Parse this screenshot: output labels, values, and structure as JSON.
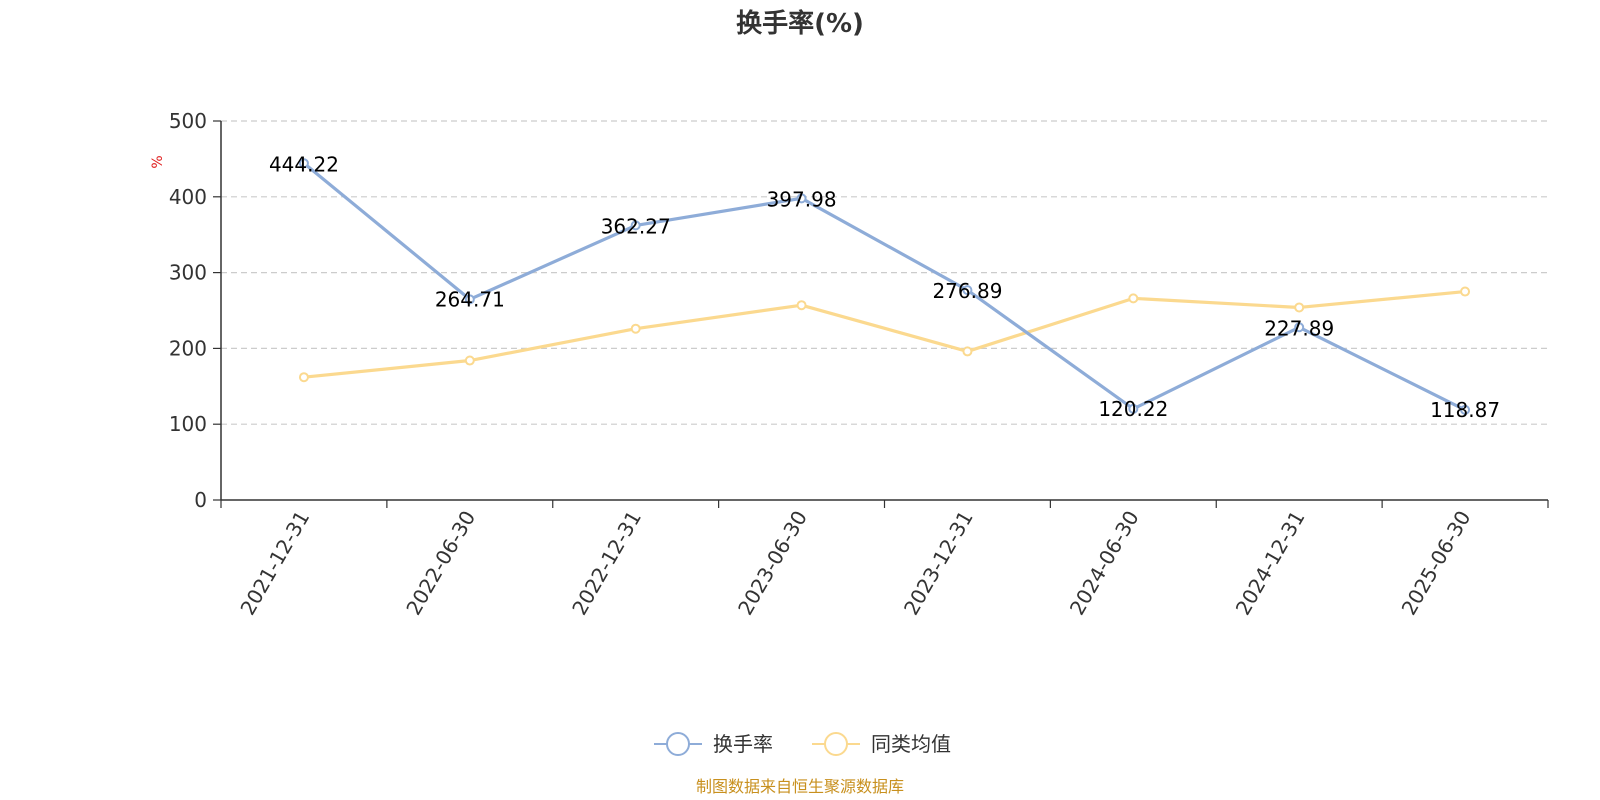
{
  "chart_data": {
    "type": "line",
    "title": "换手率(%)",
    "ylabel": "%",
    "ylim": [
      0,
      500
    ],
    "yticks": [
      "0",
      "100",
      "200",
      "300",
      "400",
      "500"
    ],
    "grid": true,
    "legend_position": "bottom",
    "categories": [
      "2021-12-31",
      "2022-06-30",
      "2022-12-31",
      "2023-06-30",
      "2023-12-31",
      "2024-06-30",
      "2024-12-31",
      "2025-06-30"
    ],
    "series": [
      {
        "name": "换手率",
        "color": "#8eacd8",
        "values": [
          444.22,
          264.71,
          362.27,
          397.98,
          276.89,
          120.22,
          227.89,
          118.87
        ],
        "labels": [
          "444.22",
          "264.71",
          "362.27",
          "397.98",
          "276.89",
          "120.22",
          "227.89",
          "118.87"
        ]
      },
      {
        "name": "同类均值",
        "color": "#fbd98f",
        "values": [
          162,
          184,
          226,
          257,
          196,
          266,
          254,
          275
        ]
      }
    ]
  },
  "source_note": "制图数据来自恒生聚源数据库",
  "colors": {
    "axis": "#333333",
    "grid": "#cccccc",
    "unit": "#e02020",
    "source": "#c8901e"
  }
}
